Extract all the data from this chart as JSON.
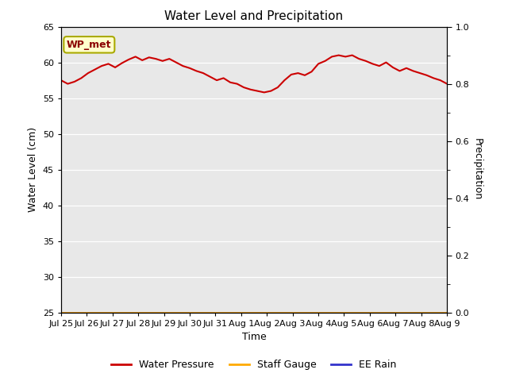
{
  "title": "Water Level and Precipitation",
  "xlabel": "Time",
  "ylabel_left": "Water Level (cm)",
  "ylabel_right": "Precipitation",
  "ylim_left": [
    25,
    65
  ],
  "ylim_right": [
    0.0,
    1.0
  ],
  "yticks_left": [
    25,
    30,
    35,
    40,
    45,
    50,
    55,
    60,
    65
  ],
  "yticks_right": [
    0.0,
    0.2,
    0.4,
    0.6,
    0.8,
    1.0
  ],
  "xtick_labels": [
    "Jul 25",
    "Jul 26",
    "Jul 27",
    "Jul 28",
    "Jul 29",
    "Jul 30",
    "Jul 31",
    "Aug 1",
    "Aug 2",
    "Aug 3",
    "Aug 4",
    "Aug 5",
    "Aug 6",
    "Aug 7",
    "Aug 8",
    "Aug 9"
  ],
  "bg_color": "#e8e8e8",
  "fig_color": "#ffffff",
  "water_pressure_color": "#cc0000",
  "staff_gauge_color": "#ffaa00",
  "ee_rain_color": "#3333cc",
  "annotation_text": "WP_met",
  "annotation_bg": "#ffffcc",
  "annotation_border": "#aaaa00",
  "water_pressure_data": [
    57.5,
    57.0,
    57.3,
    57.8,
    58.5,
    59.0,
    59.5,
    59.8,
    59.3,
    59.9,
    60.4,
    60.8,
    60.3,
    60.7,
    60.5,
    60.2,
    60.5,
    60.0,
    59.5,
    59.2,
    58.8,
    58.5,
    58.0,
    57.5,
    57.8,
    57.2,
    57.0,
    56.5,
    56.2,
    56.0,
    55.8,
    56.0,
    56.5,
    57.5,
    58.3,
    58.5,
    58.2,
    58.7,
    59.8,
    60.2,
    60.8,
    61.0,
    60.8,
    61.0,
    60.5,
    60.2,
    59.8,
    59.5,
    60.0,
    59.3,
    58.8,
    59.2,
    58.8,
    58.5,
    58.2,
    57.8,
    57.5,
    57.0
  ],
  "n_points": 58,
  "line_width": 1.5,
  "flat_line_value": 25.0,
  "tick_fontsize": 8,
  "label_fontsize": 9,
  "title_fontsize": 11
}
